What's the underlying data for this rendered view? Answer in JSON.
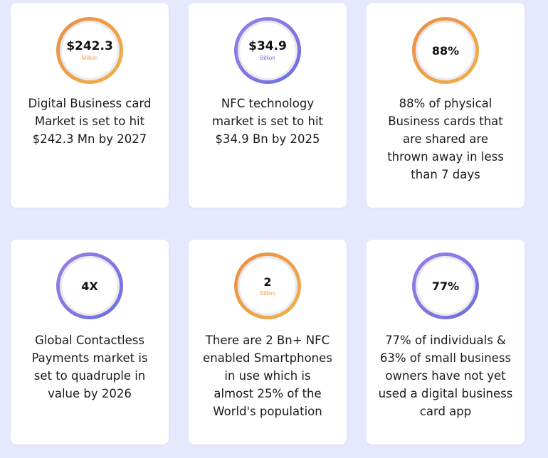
{
  "accent_colors": {
    "orange": "#f2a03c",
    "purple": "#7a72e3",
    "background": "#e6e9fd"
  },
  "cards": [
    {
      "value": "$242.3",
      "unit": "Million",
      "description": "Digital Business card Market is set to hit $242.3 Mn by 2027"
    },
    {
      "value": "$34.9",
      "unit": "Billion",
      "description": "NFC technology market is set to hit $34.9 Bn by 2025"
    },
    {
      "value": "88%",
      "unit": "",
      "description": "88% of physical Business cards that are shared are thrown away in less than 7 days"
    },
    {
      "value": "4X",
      "unit": "",
      "description": "Global Contactless Payments market is set to quadruple in value by 2026"
    },
    {
      "value": "2",
      "unit": "Billion",
      "description": "There are 2 Bn+ NFC enabled Smartphones in use which is almost 25% of the World's population"
    },
    {
      "value": "77%",
      "unit": "",
      "description": "77% of individuals & 63% of small business owners have not yet used a digital business card app"
    }
  ]
}
